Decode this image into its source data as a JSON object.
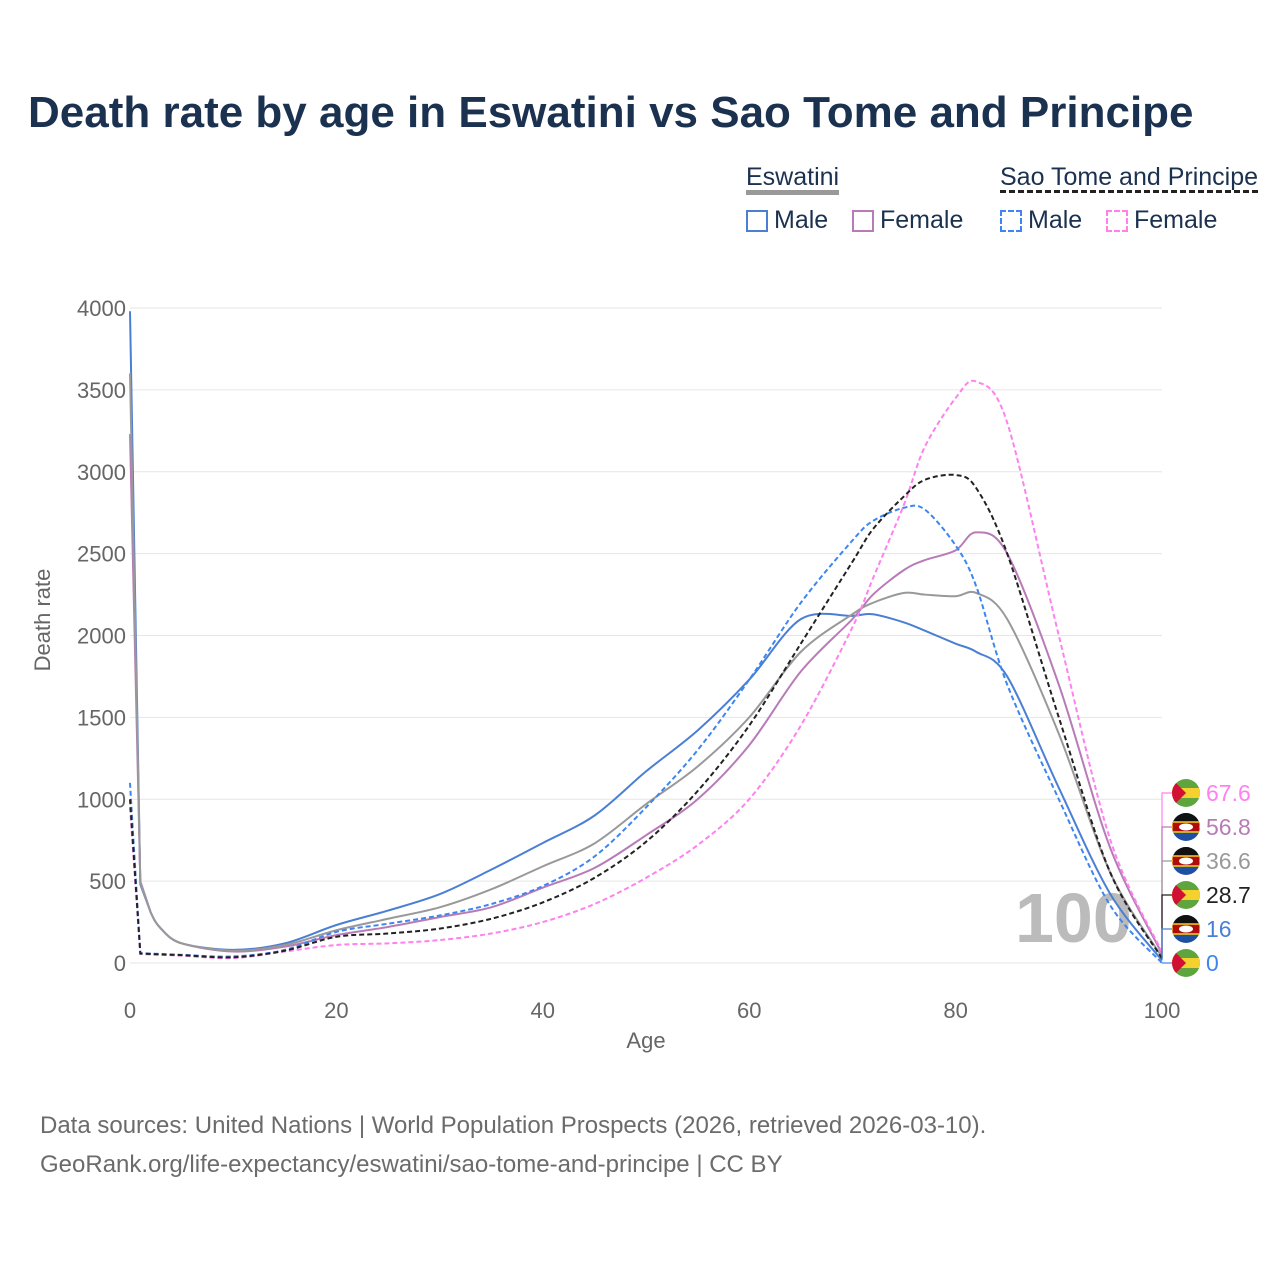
{
  "title": "Death rate by age in Eswatini vs Sao Tome and Principe",
  "legend": {
    "group1": "Eswatini",
    "group2": "Sao Tome and Principe",
    "male": "Male",
    "female": "Female"
  },
  "source": {
    "line1": "Data sources: United Nations | World Population Prospects (2026, retrieved 2026-03-10).",
    "line2": "GeoRank.org/life-expectancy/eswatini/sao-tome-and-principe | CC BY"
  },
  "watermark": "100",
  "chart_data": {
    "type": "line",
    "xlabel": "Age",
    "ylabel": "Death rate",
    "xlim": [
      0,
      100
    ],
    "ylim": [
      0,
      4000
    ],
    "xticks": [
      0,
      20,
      40,
      60,
      80,
      100
    ],
    "yticks": [
      0,
      500,
      1000,
      1500,
      2000,
      2500,
      3000,
      3500,
      4000
    ],
    "x": [
      0,
      1,
      2,
      3,
      5,
      10,
      15,
      20,
      25,
      30,
      35,
      40,
      45,
      50,
      55,
      60,
      65,
      70,
      72,
      75,
      77,
      80,
      82,
      85,
      90,
      95,
      100
    ],
    "series": [
      {
        "name": "Eswatini Male",
        "color": "#4a7fd4",
        "dash": false,
        "end_label": "16",
        "flag": "eswatini",
        "values": [
          3980,
          480,
          310,
          210,
          120,
          80,
          120,
          232,
          320,
          420,
          570,
          733,
          900,
          1170,
          1420,
          1730,
          2100,
          2120,
          2130,
          2080,
          2030,
          1950,
          1900,
          1750,
          1070,
          420,
          16
        ]
      },
      {
        "name": "Eswatini Female",
        "color": "#b87bb8",
        "dash": false,
        "end_label": "56.8",
        "flag": "eswatini",
        "values": [
          3230,
          500,
          310,
          210,
          120,
          70,
          100,
          170,
          220,
          280,
          340,
          460,
          580,
          780,
          1000,
          1330,
          1780,
          2100,
          2250,
          2400,
          2460,
          2520,
          2630,
          2500,
          1700,
          700,
          56.8
        ]
      },
      {
        "name": "Eswatini",
        "color": "#999999",
        "dash": false,
        "end_label": "36.6",
        "flag": "eswatini",
        "values": [
          3600,
          490,
          310,
          210,
          120,
          75,
          110,
          200,
          270,
          340,
          450,
          590,
          730,
          970,
          1200,
          1500,
          1900,
          2130,
          2200,
          2260,
          2250,
          2240,
          2260,
          2100,
          1400,
          550,
          36.6
        ]
      },
      {
        "name": "Sao Tome and Principe Male",
        "color": "#3d86f0",
        "dash": true,
        "end_label": "0",
        "flag": "stp",
        "values": [
          1100,
          60,
          57,
          55,
          50,
          40,
          80,
          190,
          240,
          290,
          360,
          470,
          650,
          950,
          1300,
          1730,
          2200,
          2580,
          2700,
          2780,
          2770,
          2550,
          2300,
          1700,
          1000,
          350,
          0
        ]
      },
      {
        "name": "Sao Tome and Principe Female",
        "color": "#ff80ef",
        "dash": true,
        "end_label": "67.6",
        "flag": "stp",
        "values": [
          950,
          55,
          52,
          50,
          45,
          30,
          70,
          110,
          120,
          140,
          180,
          250,
          360,
          520,
          720,
          1000,
          1450,
          2050,
          2350,
          2800,
          3150,
          3450,
          3550,
          3300,
          2000,
          750,
          67.6
        ]
      },
      {
        "name": "Sao Tome and Principe",
        "color": "#222222",
        "dash": true,
        "end_label": "28.7",
        "flag": "stp",
        "values": [
          1000,
          58,
          55,
          52,
          48,
          35,
          75,
          160,
          180,
          210,
          270,
          370,
          520,
          740,
          1050,
          1450,
          1950,
          2450,
          2650,
          2850,
          2950,
          2980,
          2900,
          2500,
          1500,
          550,
          28.7
        ]
      }
    ]
  }
}
